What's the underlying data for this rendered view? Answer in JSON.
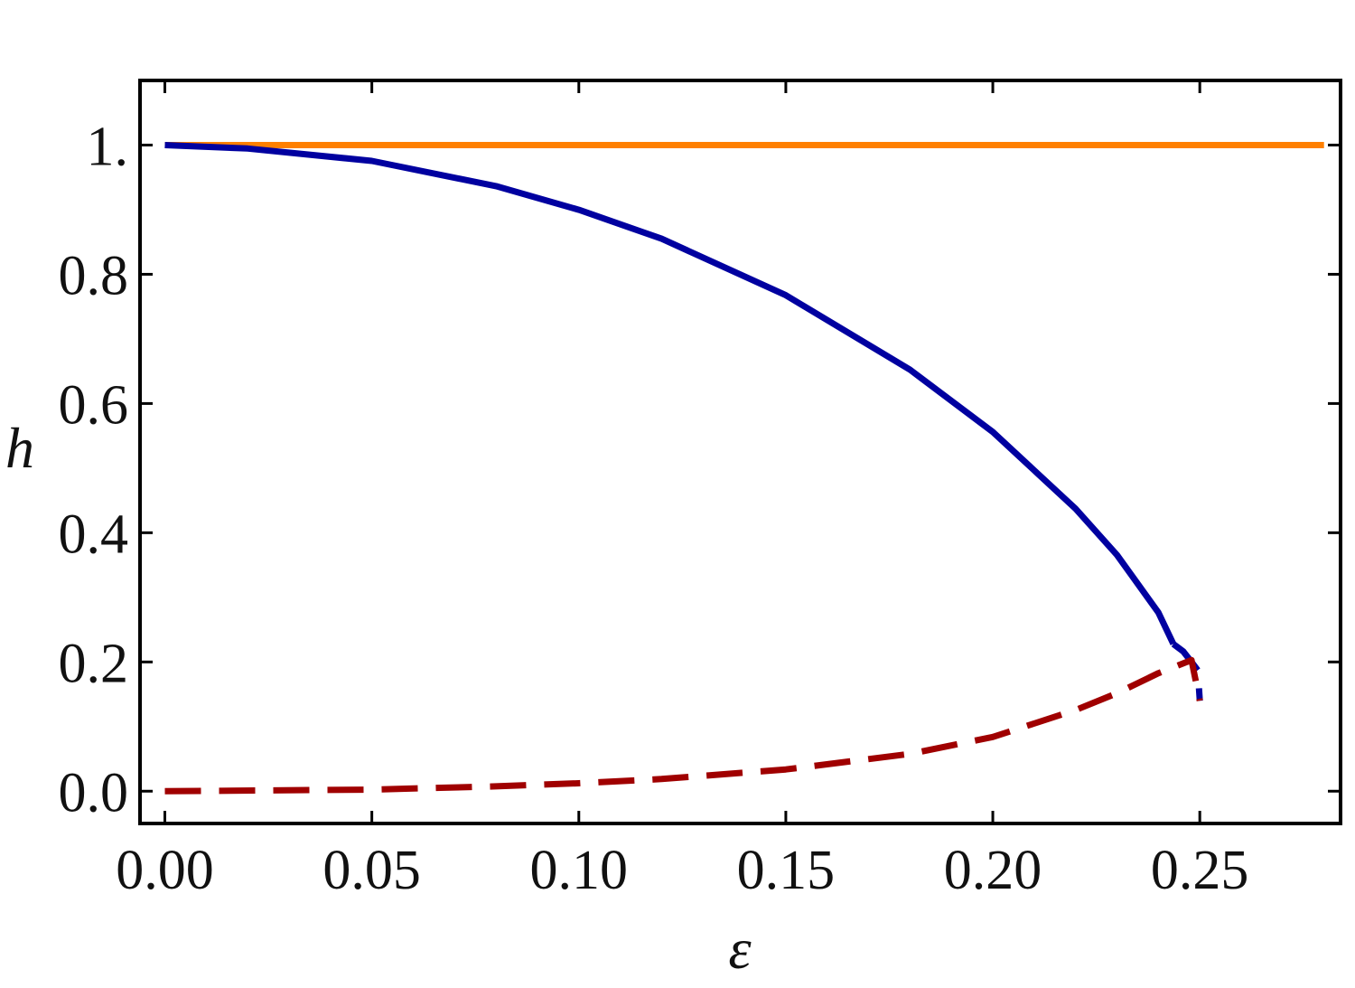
{
  "chart_data": {
    "type": "line",
    "xlabel": "ε",
    "ylabel": "h",
    "xlim": [
      -0.006,
      0.284
    ],
    "ylim": [
      -0.05,
      1.1
    ],
    "x_ticks": [
      {
        "value": 0.0,
        "label": "0.00"
      },
      {
        "value": 0.05,
        "label": "0.05"
      },
      {
        "value": 0.1,
        "label": "0.10"
      },
      {
        "value": 0.15,
        "label": "0.15"
      },
      {
        "value": 0.2,
        "label": "0.20"
      },
      {
        "value": 0.25,
        "label": "0.25"
      }
    ],
    "y_ticks": [
      {
        "value": 0.0,
        "label": "0.0"
      },
      {
        "value": 0.2,
        "label": "0.2"
      },
      {
        "value": 0.4,
        "label": "0.4"
      },
      {
        "value": 0.6,
        "label": "0.6"
      },
      {
        "value": 0.8,
        "label": "0.8"
      },
      {
        "value": 1.0,
        "label": "1."
      }
    ],
    "grid": false,
    "legend": "none",
    "series": [
      {
        "color": "#ff8000",
        "style": "solid",
        "x": [
          0.0,
          0.28
        ],
        "y": [
          1.0,
          1.0
        ]
      },
      {
        "color": "#0000a0",
        "style": "solid",
        "x": [
          0.0,
          0.02,
          0.05,
          0.08,
          0.1,
          0.12,
          0.15,
          0.18,
          0.2,
          0.22,
          0.23,
          0.24,
          0.2436
        ],
        "y": [
          1.0,
          0.9947,
          0.9755,
          0.9365,
          0.8998,
          0.8551,
          0.7676,
          0.6523,
          0.556,
          0.4372,
          0.3657,
          0.2764,
          0.2279
        ]
      },
      {
        "color": "#0000a0",
        "style": "dashed",
        "x": [
          0.2436,
          0.246,
          0.248,
          0.2495,
          0.25
        ],
        "y": [
          0.2279,
          0.2162,
          0.2,
          0.1871,
          0.14
        ]
      },
      {
        "color": "#a00000",
        "style": "dashed",
        "x": [
          0.0,
          0.05,
          0.08,
          0.1,
          0.12,
          0.15,
          0.18,
          0.2,
          0.22,
          0.23,
          0.24,
          0.248,
          0.25
        ],
        "y": [
          0.0,
          0.0024,
          0.0075,
          0.0123,
          0.0189,
          0.0337,
          0.0577,
          0.0839,
          0.1256,
          0.1516,
          0.1827,
          0.2029,
          0.14
        ]
      }
    ]
  }
}
